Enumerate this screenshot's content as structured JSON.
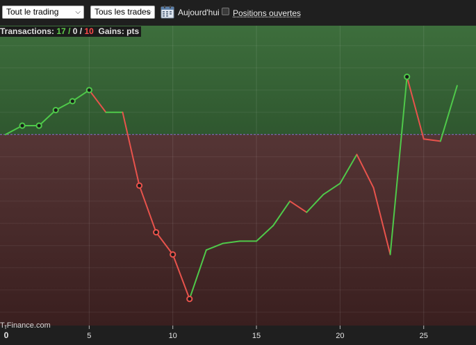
{
  "toolbar": {
    "trading_filter": "Tout le trading",
    "trade_filter": "Tous les trades",
    "today_label": "Aujourd'hui",
    "open_positions_label": "Positions ouvertes",
    "open_positions_checked": false
  },
  "stats": {
    "transactions_label": "Transactions:",
    "wins": "17",
    "sep1": " / ",
    "neutral": "0",
    "sep2": " / ",
    "losses": "10",
    "gains_label": "Gains: pts"
  },
  "watermark": "T-Finance.com",
  "colors": {
    "profit_zone": "#3f6b3e",
    "loss_zone": "#4b2b2b",
    "up": "#4fc94a",
    "down": "#e8534c",
    "baseline": "#8a6fcf"
  },
  "chart_data": {
    "type": "line",
    "title": "",
    "xlabel": "",
    "ylabel": "",
    "xlim": [
      0,
      28
    ],
    "ylim": [
      -86,
      49
    ],
    "baseline": 0,
    "x_ticks": [
      "0",
      "5",
      "10",
      "15",
      "20",
      "25"
    ],
    "grid": true,
    "points": [
      {
        "x": 0,
        "y": 0
      },
      {
        "x": 1,
        "y": 4,
        "marker": "up"
      },
      {
        "x": 2,
        "y": 4,
        "marker": "up"
      },
      {
        "x": 3,
        "y": 11,
        "marker": "up"
      },
      {
        "x": 4,
        "y": 15,
        "marker": "up"
      },
      {
        "x": 5,
        "y": 20,
        "marker": "up"
      },
      {
        "x": 6,
        "y": 10
      },
      {
        "x": 7,
        "y": 10
      },
      {
        "x": 8,
        "y": -23,
        "marker": "down"
      },
      {
        "x": 9,
        "y": -44,
        "marker": "down"
      },
      {
        "x": 10,
        "y": -54,
        "marker": "down"
      },
      {
        "x": 11,
        "y": -74,
        "marker": "down"
      },
      {
        "x": 12,
        "y": -52
      },
      {
        "x": 13,
        "y": -49
      },
      {
        "x": 14,
        "y": -48
      },
      {
        "x": 15,
        "y": -48
      },
      {
        "x": 16,
        "y": -41
      },
      {
        "x": 17,
        "y": -30
      },
      {
        "x": 18,
        "y": -35
      },
      {
        "x": 19,
        "y": -27
      },
      {
        "x": 20,
        "y": -22
      },
      {
        "x": 21,
        "y": -9
      },
      {
        "x": 22,
        "y": -24
      },
      {
        "x": 23,
        "y": -54
      },
      {
        "x": 24,
        "y": 26,
        "marker": "up"
      },
      {
        "x": 25,
        "y": -2
      },
      {
        "x": 26,
        "y": -3
      },
      {
        "x": 27,
        "y": 22
      }
    ]
  }
}
